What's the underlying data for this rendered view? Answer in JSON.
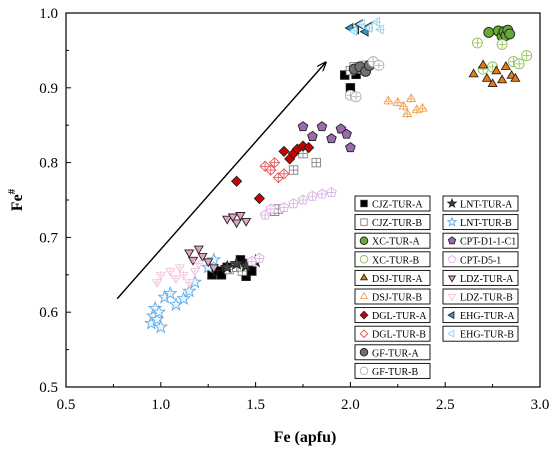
{
  "chart_data": {
    "type": "scatter",
    "xlabel": "Fe (apfu)",
    "ylabel": "Fe#",
    "xlim": [
      0.5,
      3.0
    ],
    "ylim": [
      0.5,
      1.0
    ],
    "x_ticks": [
      "0.5",
      "1.0",
      "1.5",
      "2.0",
      "2.5",
      "3.0"
    ],
    "y_ticks": [
      "0.5",
      "0.6",
      "0.7",
      "0.8",
      "0.9",
      "1.0"
    ],
    "grid": false,
    "legend_position": "right, inside plot (two columns)",
    "arrow": {
      "from": [
        0.77,
        0.618
      ],
      "to": [
        1.87,
        0.934
      ]
    },
    "series": [
      {
        "name": "CJZ-TUR-A",
        "marker": "square",
        "color": "#000000",
        "x": [
          1.27,
          1.3,
          1.32,
          1.35,
          1.42,
          1.44,
          1.45,
          1.46,
          1.48,
          1.97,
          2.0,
          2.03
        ],
        "y": [
          0.65,
          0.655,
          0.65,
          0.66,
          0.67,
          0.66,
          0.648,
          0.665,
          0.655,
          0.917,
          0.9,
          0.918
        ]
      },
      {
        "name": "CJZ-TUR-B",
        "marker": "square",
        "color": "#808080",
        "x": [
          1.36,
          1.4,
          1.43,
          1.6,
          1.62,
          1.7,
          1.75,
          1.82,
          2.0,
          2.02,
          2.05,
          2.08
        ],
        "y": [
          0.657,
          0.66,
          0.655,
          0.735,
          0.738,
          0.79,
          0.812,
          0.8,
          0.923,
          0.928,
          0.925,
          0.93
        ]
      },
      {
        "name": "XC-TUR-A",
        "marker": "circle",
        "color": "#66aa33",
        "x": [
          2.73,
          2.78,
          2.8,
          2.81,
          2.82,
          2.83,
          2.84
        ],
        "y": [
          0.974,
          0.976,
          0.969,
          0.975,
          0.97,
          0.977,
          0.972
        ]
      },
      {
        "name": "XC-TUR-B",
        "marker": "circle",
        "color": "#8fbf50",
        "x": [
          2.67,
          2.7,
          2.75,
          2.8,
          2.86,
          2.89,
          2.93
        ],
        "y": [
          0.96,
          0.925,
          0.928,
          0.958,
          0.935,
          0.932,
          0.943
        ]
      },
      {
        "name": "DSJ-TUR-A",
        "marker": "triangle",
        "color": "#e87a10",
        "x": [
          2.65,
          2.7,
          2.72,
          2.75,
          2.77,
          2.8,
          2.82,
          2.85,
          2.87
        ],
        "y": [
          0.918,
          0.93,
          0.912,
          0.905,
          0.922,
          0.91,
          0.928,
          0.916,
          0.912
        ]
      },
      {
        "name": "DSJ-TUR-B",
        "marker": "triangle",
        "color": "#f0a050",
        "x": [
          2.2,
          2.25,
          2.28,
          2.3,
          2.32,
          2.35,
          2.38
        ],
        "y": [
          0.882,
          0.88,
          0.875,
          0.865,
          0.885,
          0.87,
          0.872
        ]
      },
      {
        "name": "DGL-TUR-A",
        "marker": "diamond",
        "color": "#d00000",
        "x": [
          1.4,
          1.52,
          1.65,
          1.68,
          1.7,
          1.72,
          1.75,
          1.78
        ],
        "y": [
          0.775,
          0.752,
          0.815,
          0.805,
          0.812,
          0.818,
          0.822,
          0.82
        ]
      },
      {
        "name": "DGL-TUR-B",
        "marker": "diamond",
        "color": "#e05050",
        "x": [
          1.55,
          1.58,
          1.6,
          1.62,
          1.65
        ],
        "y": [
          0.795,
          0.79,
          0.8,
          0.78,
          0.785
        ]
      },
      {
        "name": "GF-TUR-A",
        "marker": "circle",
        "color": "#707070",
        "x": [
          2.02,
          2.05,
          2.08,
          2.1
        ],
        "y": [
          0.925,
          0.928,
          0.922,
          0.93
        ]
      },
      {
        "name": "GF-TUR-B",
        "marker": "circle",
        "color": "#b0b0b0",
        "x": [
          2.0,
          2.03,
          2.12,
          2.15
        ],
        "y": [
          0.89,
          0.888,
          0.935,
          0.93
        ]
      },
      {
        "name": "LNT-TUR-A",
        "marker": "star",
        "color": "#404040",
        "x": [
          1.35,
          1.4,
          1.45,
          1.5
        ],
        "y": [
          0.66,
          0.665,
          0.662,
          0.668
        ]
      },
      {
        "name": "LNT-TUR-B",
        "marker": "star",
        "color": "#5aa9e6",
        "x": [
          0.95,
          0.96,
          0.97,
          0.98,
          0.99,
          1.0,
          1.02,
          1.05,
          1.08,
          1.12,
          1.15,
          1.18,
          1.25,
          1.28
        ],
        "y": [
          0.585,
          0.595,
          0.605,
          0.59,
          0.6,
          0.58,
          0.62,
          0.625,
          0.61,
          0.618,
          0.628,
          0.64,
          0.66,
          0.67
        ]
      },
      {
        "name": "CPT-D1-1-C1",
        "marker": "pentagon",
        "color": "#9b6bb0",
        "x": [
          1.75,
          1.8,
          1.85,
          1.9,
          1.95,
          1.98,
          2.0
        ],
        "y": [
          0.848,
          0.835,
          0.848,
          0.832,
          0.845,
          0.838,
          0.82
        ]
      },
      {
        "name": "CPT-D5-1",
        "marker": "pentagon",
        "color": "#d8b0e0",
        "x": [
          1.48,
          1.52,
          1.55,
          1.58,
          1.65,
          1.7,
          1.75,
          1.8,
          1.85,
          1.9
        ],
        "y": [
          0.668,
          0.672,
          0.73,
          0.738,
          0.74,
          0.745,
          0.75,
          0.755,
          0.758,
          0.76
        ]
      },
      {
        "name": "LDZ-TUR-A",
        "marker": "triangle-down",
        "color": "#e7a3c4",
        "x": [
          1.15,
          1.17,
          1.2,
          1.22,
          1.25,
          1.28,
          1.35,
          1.38,
          1.4,
          1.42,
          1.45
        ],
        "y": [
          0.68,
          0.67,
          0.685,
          0.675,
          0.668,
          0.66,
          0.725,
          0.728,
          0.72,
          0.73,
          0.722
        ]
      },
      {
        "name": "LDZ-TUR-B",
        "marker": "triangle-down",
        "color": "#f2c6dc",
        "x": [
          0.98,
          1.0,
          1.05,
          1.08,
          1.1,
          1.12,
          1.15,
          1.18,
          1.2
        ],
        "y": [
          0.64,
          0.65,
          0.655,
          0.645,
          0.66,
          0.65,
          0.64,
          0.655,
          0.665
        ]
      },
      {
        "name": "EHG-TUR-A",
        "marker": "triangle-left",
        "color": "#3a9bd5",
        "x": [
          2.0,
          2.03,
          2.05,
          2.08,
          2.1
        ],
        "y": [
          0.98,
          0.978,
          0.985,
          0.975,
          0.982
        ]
      },
      {
        "name": "EHG-TUR-B",
        "marker": "triangle-left",
        "color": "#8fd0f0",
        "x": [
          2.02,
          2.06,
          2.1,
          2.14,
          2.16
        ],
        "y": [
          0.976,
          0.985,
          0.98,
          0.988,
          0.978
        ]
      }
    ]
  }
}
